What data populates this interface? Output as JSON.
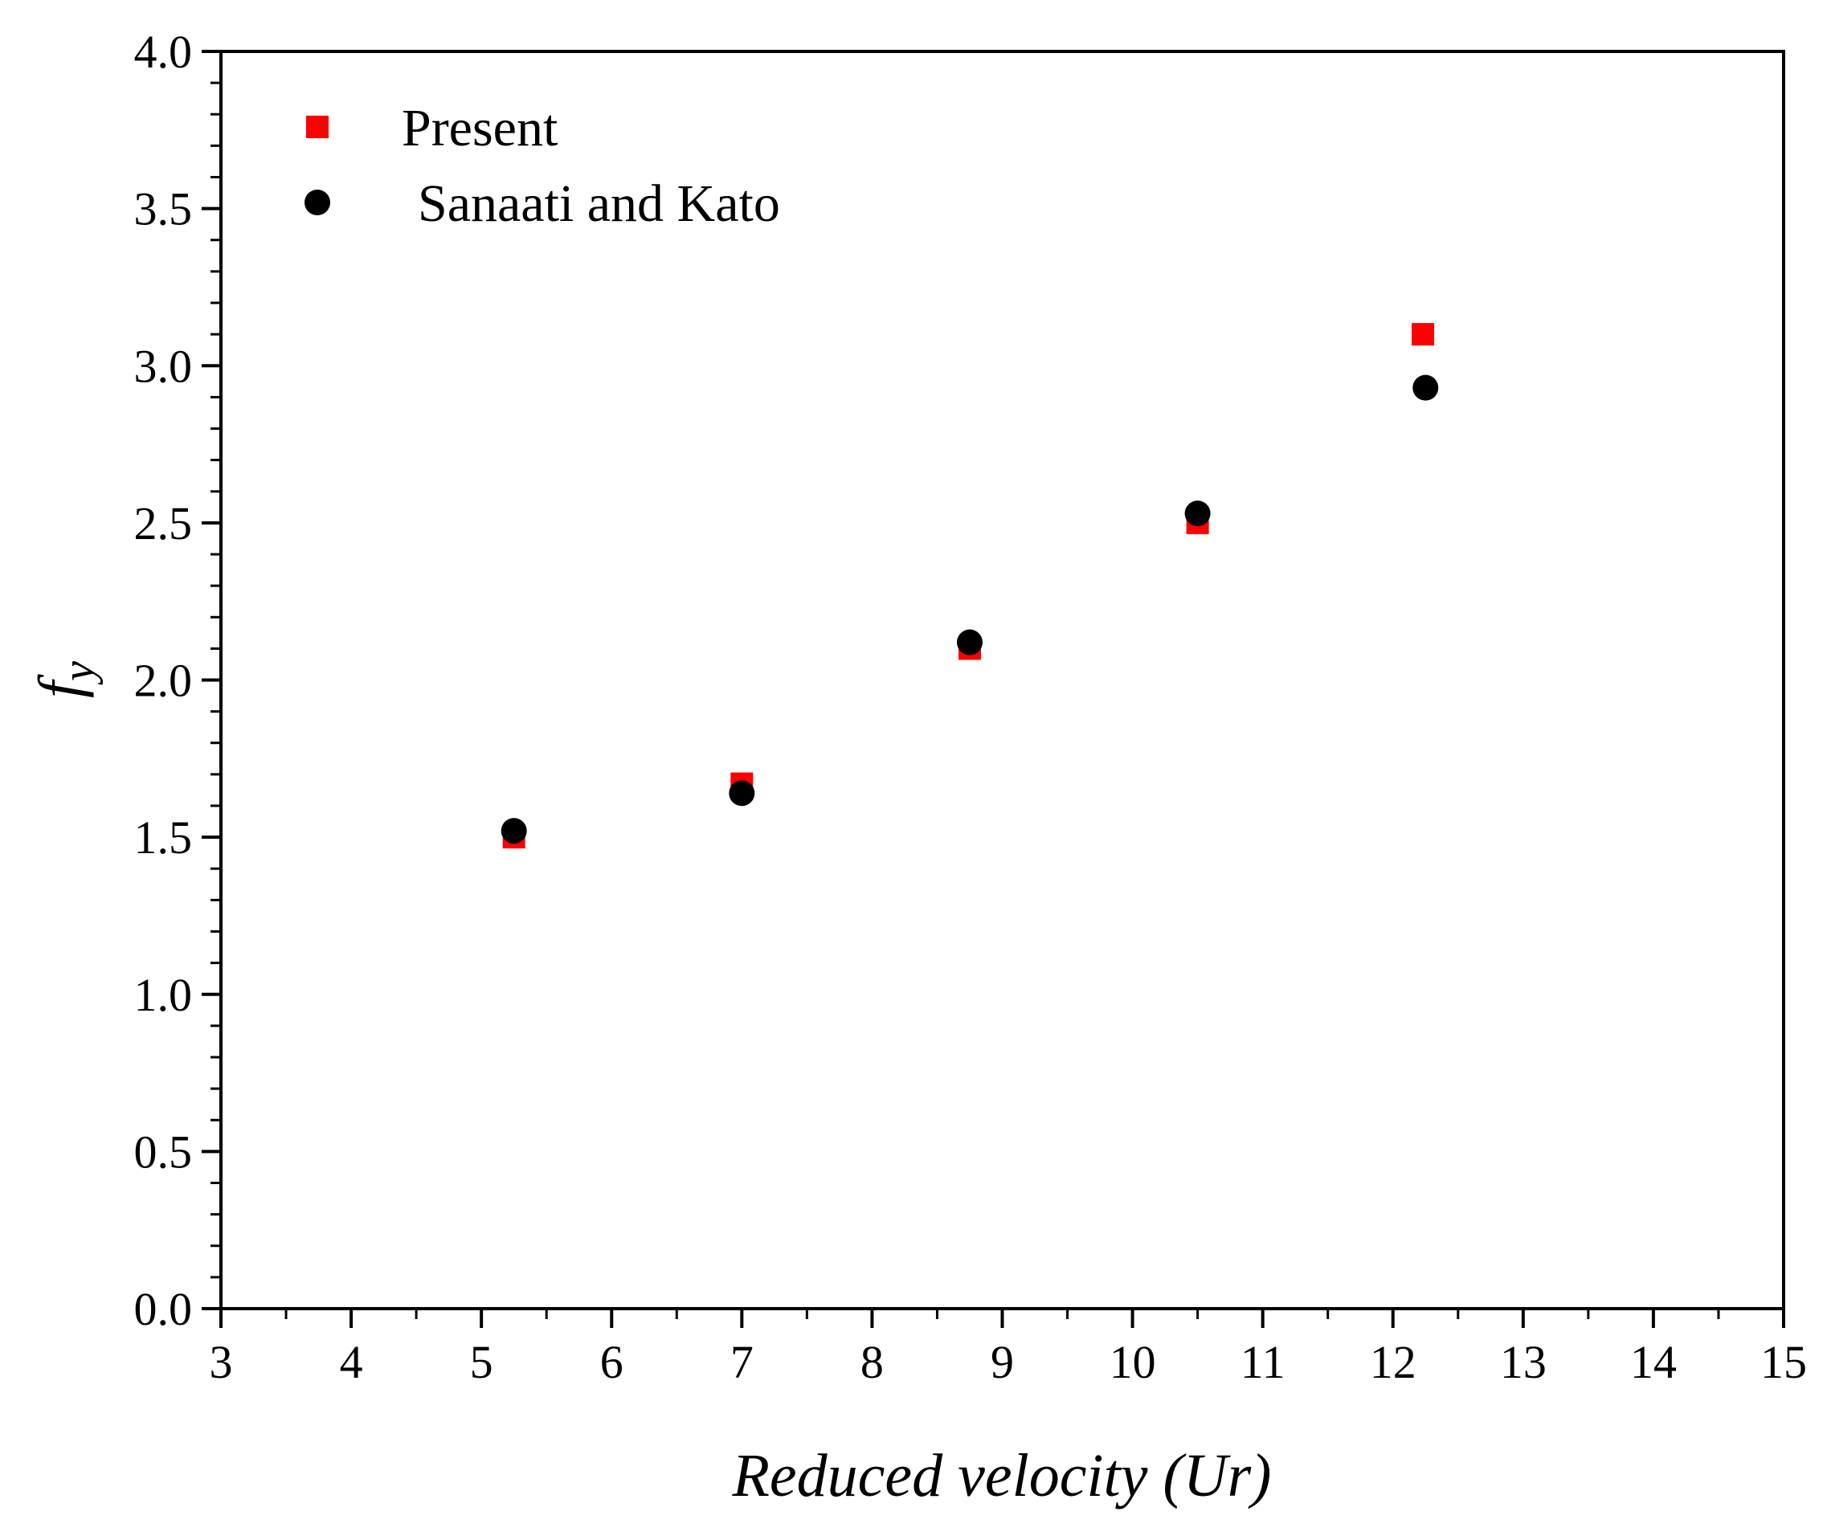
{
  "chart_data": {
    "type": "scatter",
    "title": "",
    "xlabel": "Reduced velocity (Ur)",
    "ylabel_main": "f",
    "ylabel_sub": "y",
    "xlim": [
      3,
      15
    ],
    "ylim": [
      0.0,
      4.0
    ],
    "x_ticks": [
      3,
      4,
      5,
      6,
      7,
      8,
      9,
      10,
      11,
      12,
      13,
      14,
      15
    ],
    "x_tick_labels": [
      "3",
      "4",
      "5",
      "6",
      "7",
      "8",
      "9",
      "10",
      "11",
      "12",
      "13",
      "14",
      "15"
    ],
    "y_ticks": [
      0.0,
      0.5,
      1.0,
      1.5,
      2.0,
      2.5,
      3.0,
      3.5,
      4.0
    ],
    "y_tick_labels": [
      "0.0",
      "0.5",
      "1.0",
      "1.5",
      "2.0",
      "2.5",
      "3.0",
      "3.5",
      "4.0"
    ],
    "grid": false,
    "legend_position": "top-left",
    "series": [
      {
        "name": "Present",
        "marker": "square",
        "color": "#ff0000",
        "x": [
          5.25,
          7.0,
          8.75,
          10.5,
          12.23
        ],
        "y": [
          1.5,
          1.67,
          2.1,
          2.5,
          3.1
        ]
      },
      {
        "name": "Sanaati and Kato",
        "marker": "circle",
        "color": "#000000",
        "x": [
          5.25,
          7.0,
          8.75,
          10.5,
          12.25
        ],
        "y": [
          1.52,
          1.64,
          2.12,
          2.53,
          2.93
        ]
      }
    ]
  }
}
